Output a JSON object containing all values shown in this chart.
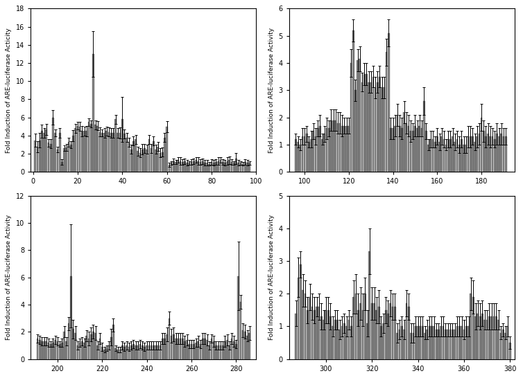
{
  "bar_color": "#808080",
  "bar_edge_color": "#555555",
  "subplots": [
    {
      "x_start": 1,
      "x_end": 97,
      "xlim": [
        -1,
        99
      ],
      "ylim": [
        0,
        18
      ],
      "yticks": [
        0,
        2,
        4,
        6,
        8,
        10,
        12,
        14,
        16,
        18
      ],
      "xticks": [
        0,
        20,
        40,
        60,
        80,
        100
      ],
      "ylabel": "Fold Induction of ARE-luciferase Acticity",
      "vals": [
        3.5,
        2.8,
        3.5,
        4.5,
        4.3,
        4.7,
        3.2,
        3.1,
        6.0,
        4.3,
        2.5,
        4.3,
        1.1,
        2.6,
        2.7,
        3.3,
        3.0,
        4.0,
        4.8,
        5.1,
        5.0,
        4.5,
        4.5,
        4.5,
        5.5,
        5.3,
        13.0,
        5.2,
        5.1,
        4.4,
        4.3,
        4.3,
        4.5,
        4.4,
        4.3,
        4.3,
        5.8,
        4.3,
        4.3,
        5.8,
        4.2,
        3.8,
        3.3,
        2.5,
        3.4,
        3.6,
        2.3,
        2.1,
        2.5,
        2.6,
        2.5,
        3.6,
        2.6,
        3.4,
        2.5,
        2.8,
        2.1,
        2.2,
        3.8,
        5.0,
        0.8,
        1.0,
        1.2,
        1.1,
        1.3,
        1.2,
        1.1,
        1.2,
        1.0,
        1.0,
        1.1,
        1.2,
        1.3,
        1.2,
        1.1,
        1.2,
        1.0,
        1.0,
        0.9,
        1.1,
        1.0,
        1.1,
        1.2,
        1.3,
        1.1,
        1.0,
        1.2,
        1.3,
        1.1,
        1.0,
        1.5,
        1.0,
        1.0,
        0.9,
        1.1,
        1.0,
        1.0
      ],
      "errs": [
        0.7,
        0.6,
        0.8,
        0.7,
        0.5,
        0.6,
        0.4,
        0.5,
        0.8,
        0.4,
        0.3,
        0.5,
        0.3,
        0.3,
        0.4,
        0.5,
        0.4,
        0.6,
        0.5,
        0.4,
        0.5,
        0.6,
        0.5,
        0.6,
        0.4,
        0.4,
        2.5,
        0.5,
        0.5,
        0.5,
        0.4,
        0.5,
        0.5,
        0.5,
        0.5,
        0.5,
        0.5,
        0.5,
        0.6,
        2.5,
        0.5,
        0.5,
        0.5,
        0.5,
        0.5,
        0.5,
        0.5,
        0.5,
        0.6,
        0.5,
        0.5,
        0.5,
        0.5,
        0.5,
        0.5,
        0.5,
        0.5,
        0.5,
        0.5,
        0.6,
        0.2,
        0.2,
        0.3,
        0.2,
        0.3,
        0.4,
        0.3,
        0.3,
        0.3,
        0.2,
        0.3,
        0.3,
        0.3,
        0.4,
        0.3,
        0.3,
        0.3,
        0.3,
        0.2,
        0.3,
        0.3,
        0.3,
        0.4,
        0.3,
        0.3,
        0.3,
        0.4,
        0.4,
        0.3,
        0.2,
        0.6,
        0.3,
        0.2,
        0.2,
        0.3,
        0.3,
        0.2
      ]
    },
    {
      "x_start": 96,
      "x_end": 192,
      "xlim": [
        93,
        195
      ],
      "ylim": [
        0,
        6
      ],
      "yticks": [
        0,
        1,
        2,
        3,
        4,
        5,
        6
      ],
      "xticks": [
        100,
        120,
        140,
        160,
        180
      ],
      "ylabel": "Fold Induction of ARE-luciferase Activity",
      "vals": [
        1.2,
        1.1,
        1.0,
        1.3,
        1.3,
        1.4,
        1.1,
        1.2,
        1.5,
        1.3,
        1.6,
        1.7,
        1.2,
        1.4,
        1.6,
        1.6,
        1.9,
        1.9,
        1.9,
        1.8,
        1.8,
        1.7,
        1.7,
        1.7,
        1.7,
        4.0,
        5.2,
        3.0,
        4.1,
        4.15,
        3.3,
        3.6,
        3.6,
        3.3,
        3.3,
        3.5,
        3.1,
        3.3,
        3.5,
        3.1,
        3.1,
        4.4,
        5.1,
        1.6,
        1.6,
        1.7,
        2.1,
        1.7,
        1.6,
        2.2,
        1.8,
        1.7,
        1.5,
        1.5,
        1.7,
        1.6,
        1.7,
        1.6,
        2.6,
        1.5,
        1.0,
        1.2,
        1.2,
        1.1,
        1.3,
        1.1,
        1.3,
        1.2,
        1.0,
        1.2,
        1.2,
        1.3,
        1.1,
        1.2,
        1.0,
        1.2,
        1.0,
        1.0,
        1.3,
        1.3,
        1.3,
        1.1,
        1.3,
        1.4,
        2.0,
        1.5,
        1.3,
        1.4,
        1.3,
        1.3,
        1.2,
        1.4,
        1.3,
        1.4,
        1.3,
        1.3
      ],
      "errs": [
        0.2,
        0.2,
        0.2,
        0.3,
        0.3,
        0.3,
        0.2,
        0.3,
        0.3,
        0.3,
        0.3,
        0.4,
        0.2,
        0.3,
        0.4,
        0.3,
        0.4,
        0.4,
        0.4,
        0.4,
        0.4,
        0.4,
        0.3,
        0.3,
        0.3,
        0.5,
        0.4,
        0.4,
        0.4,
        0.45,
        0.35,
        0.4,
        0.4,
        0.4,
        0.4,
        0.4,
        0.4,
        0.4,
        0.4,
        0.4,
        0.4,
        0.5,
        0.5,
        0.4,
        0.4,
        0.4,
        0.4,
        0.4,
        0.4,
        0.4,
        0.4,
        0.4,
        0.4,
        0.3,
        0.4,
        0.3,
        0.4,
        0.3,
        0.5,
        0.3,
        0.2,
        0.3,
        0.3,
        0.2,
        0.3,
        0.3,
        0.3,
        0.3,
        0.2,
        0.3,
        0.3,
        0.3,
        0.3,
        0.3,
        0.3,
        0.3,
        0.3,
        0.3,
        0.4,
        0.4,
        0.3,
        0.3,
        0.4,
        0.4,
        0.5,
        0.4,
        0.4,
        0.4,
        0.4,
        0.3,
        0.3,
        0.4,
        0.3,
        0.4,
        0.3,
        0.3
      ]
    },
    {
      "x_start": 191,
      "x_end": 287,
      "xlim": [
        188,
        289
      ],
      "ylim": [
        0,
        12
      ],
      "yticks": [
        0,
        2,
        4,
        6,
        8,
        10,
        12
      ],
      "xticks": [
        200,
        220,
        240,
        260,
        280
      ],
      "ylabel": "Fold Induction of ARE-luciferase Activity",
      "vals": [
        1.5,
        1.4,
        1.3,
        1.3,
        1.3,
        1.2,
        1.1,
        1.2,
        1.4,
        1.3,
        1.1,
        1.2,
        2.0,
        1.3,
        2.6,
        6.1,
        2.2,
        1.9,
        1.0,
        1.2,
        1.3,
        1.2,
        1.7,
        1.5,
        1.8,
        2.0,
        1.9,
        1.0,
        1.5,
        0.9,
        0.7,
        0.8,
        1.0,
        1.6,
        2.5,
        0.8,
        0.7,
        0.7,
        1.0,
        0.9,
        1.0,
        0.9,
        1.0,
        1.1,
        1.0,
        1.0,
        1.1,
        1.0,
        0.9,
        1.0,
        1.0,
        1.0,
        1.0,
        1.0,
        1.0,
        1.0,
        1.5,
        1.5,
        1.8,
        3.0,
        1.7,
        1.8,
        1.5,
        1.5,
        1.5,
        1.5,
        1.3,
        1.4,
        1.1,
        1.1,
        1.1,
        1.2,
        1.3,
        1.1,
        1.5,
        1.5,
        1.4,
        1.0,
        1.5,
        1.3,
        1.0,
        1.0,
        1.0,
        1.0,
        1.3,
        1.4,
        1.0,
        1.5,
        1.3,
        1.1,
        6.1,
        4.2,
        2.1,
        2.0,
        1.7,
        1.9
      ],
      "errs": [
        0.3,
        0.3,
        0.3,
        0.3,
        0.3,
        0.3,
        0.2,
        0.3,
        0.3,
        0.3,
        0.2,
        0.3,
        0.4,
        0.3,
        0.5,
        3.8,
        0.7,
        0.5,
        0.3,
        0.3,
        0.3,
        0.3,
        0.4,
        0.5,
        0.5,
        0.5,
        0.5,
        0.3,
        0.4,
        0.3,
        0.2,
        0.2,
        0.3,
        0.6,
        0.5,
        0.2,
        0.2,
        0.2,
        0.3,
        0.3,
        0.3,
        0.3,
        0.3,
        0.3,
        0.3,
        0.3,
        0.3,
        0.3,
        0.3,
        0.3,
        0.3,
        0.3,
        0.3,
        0.3,
        0.3,
        0.3,
        0.4,
        0.4,
        0.5,
        0.5,
        0.5,
        0.5,
        0.4,
        0.4,
        0.4,
        0.4,
        0.4,
        0.4,
        0.3,
        0.3,
        0.3,
        0.3,
        0.4,
        0.3,
        0.4,
        0.4,
        0.4,
        0.3,
        0.3,
        0.4,
        0.3,
        0.3,
        0.3,
        0.3,
        0.4,
        0.4,
        0.3,
        0.4,
        0.4,
        0.3,
        2.5,
        0.5,
        0.5,
        0.5,
        0.4,
        0.5
      ]
    },
    {
      "x_start": 287,
      "x_end": 381,
      "xlim": [
        284,
        382
      ],
      "ylim": [
        0,
        5
      ],
      "yticks": [
        0,
        1,
        2,
        3,
        4,
        5
      ],
      "xticks": [
        300,
        320,
        340,
        360,
        380
      ],
      "ylabel": "Fold Induction of ARE-luciferase Activity",
      "vals": [
        1.4,
        2.5,
        2.9,
        2.1,
        2.0,
        1.5,
        1.9,
        1.6,
        1.5,
        1.6,
        1.6,
        1.3,
        1.2,
        1.5,
        1.5,
        1.3,
        1.0,
        1.2,
        1.2,
        0.9,
        1.0,
        1.1,
        1.0,
        1.2,
        1.0,
        1.9,
        2.0,
        1.5,
        1.7,
        1.5,
        2.0,
        1.1,
        3.3,
        1.7,
        1.7,
        1.5,
        1.6,
        1.0,
        1.1,
        1.5,
        1.4,
        1.7,
        1.6,
        1.6,
        0.8,
        0.9,
        1.0,
        0.9,
        1.7,
        1.6,
        0.8,
        0.8,
        1.0,
        1.0,
        1.0,
        1.0,
        0.8,
        0.9,
        1.0,
        1.0,
        1.0,
        0.9,
        0.9,
        1.0,
        1.0,
        0.9,
        0.9,
        0.9,
        0.9,
        0.9,
        1.0,
        1.0,
        1.0,
        0.9,
        1.0,
        1.0,
        2.0,
        1.9,
        1.3,
        1.4,
        1.3,
        1.4,
        1.2,
        1.2,
        1.3,
        1.3,
        1.3,
        1.3,
        1.2,
        0.8,
        0.9,
        0.8,
        1.0,
        0.5
      ],
      "errs": [
        0.4,
        0.6,
        0.4,
        0.5,
        0.4,
        0.4,
        0.4,
        0.4,
        0.4,
        0.3,
        0.4,
        0.4,
        0.3,
        0.4,
        0.4,
        0.4,
        0.3,
        0.3,
        0.3,
        0.3,
        0.3,
        0.3,
        0.3,
        0.3,
        0.3,
        0.5,
        0.6,
        0.5,
        0.5,
        0.5,
        0.5,
        0.4,
        0.7,
        0.5,
        0.5,
        0.4,
        0.5,
        0.3,
        0.3,
        0.4,
        0.4,
        0.4,
        0.4,
        0.4,
        0.3,
        0.3,
        0.3,
        0.3,
        0.4,
        0.4,
        0.3,
        0.3,
        0.3,
        0.3,
        0.3,
        0.3,
        0.2,
        0.3,
        0.3,
        0.3,
        0.3,
        0.2,
        0.2,
        0.3,
        0.3,
        0.2,
        0.2,
        0.2,
        0.2,
        0.2,
        0.3,
        0.3,
        0.3,
        0.3,
        0.3,
        0.3,
        0.5,
        0.5,
        0.4,
        0.4,
        0.4,
        0.4,
        0.3,
        0.3,
        0.4,
        0.4,
        0.4,
        0.4,
        0.3,
        0.2,
        0.2,
        0.2,
        0.3,
        0.2
      ]
    }
  ]
}
